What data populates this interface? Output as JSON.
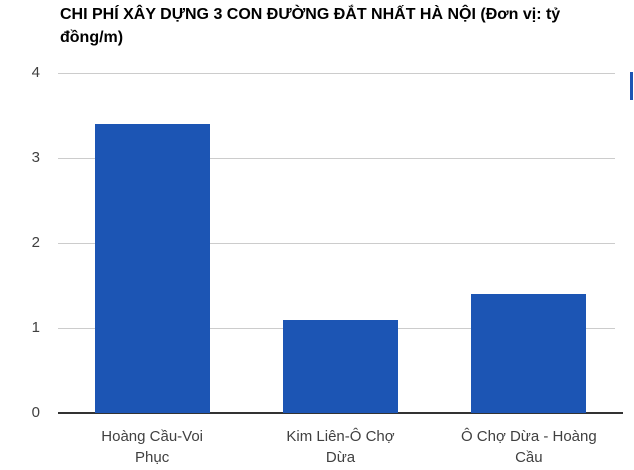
{
  "title": "CHI PHÍ XÂY DỰNG 3 CON ĐƯỜNG ĐẮT NHẤT HÀ NỘI (Đơn vị: tỷ đồng/m)",
  "chart_data": {
    "type": "bar",
    "title": "CHI PHÍ XÂY DỰNG 3 CON ĐƯỜNG ĐẮT NHẤT HÀ NỘI (Đơn vị: tỷ đồng/m)",
    "unit": "tỷ đồng/m",
    "categories": [
      "Hoàng Cầu-Voi Phục",
      "Kim Liên-Ô Chợ Dừa",
      "Ô Chợ Dừa - Hoàng Cầu"
    ],
    "category_lines": [
      [
        "Hoàng Cầu-Voi",
        "Phục"
      ],
      [
        "Kim Liên-Ô Chợ",
        "Dừa"
      ],
      [
        "Ô Chợ Dừa - Hoàng",
        "Cầu"
      ]
    ],
    "values": [
      3.4,
      1.1,
      1.4
    ],
    "xlabel": "",
    "ylabel": "",
    "ylim": [
      0,
      4
    ],
    "yticks": [
      0,
      1,
      2,
      3,
      4
    ],
    "grid": true,
    "legend_position": "none",
    "bar_color": "#1c55b4",
    "gridline_color": "#cccccc",
    "baseline_color": "#333333",
    "axis_text_color": "#404040",
    "title_color": "#000000"
  },
  "decor": {
    "right_edge_sliver_color": "#1c55b4"
  }
}
